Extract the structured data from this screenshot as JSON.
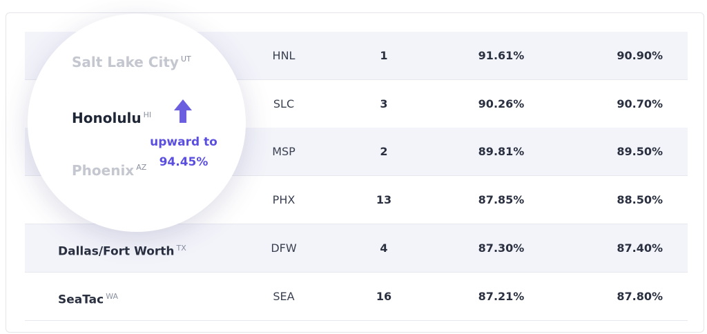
{
  "table": {
    "rows": [
      {
        "code": "HNL",
        "rank": "1",
        "pct1": "91.61%",
        "pct2": "90.90%"
      },
      {
        "code": "SLC",
        "rank": "3",
        "pct1": "90.26%",
        "pct2": "90.70%"
      },
      {
        "code": "MSP",
        "rank": "2",
        "pct1": "89.81%",
        "pct2": "89.50%"
      },
      {
        "code": "PHX",
        "rank": "13",
        "pct1": "87.85%",
        "pct2": "88.50%"
      },
      {
        "city": "Dallas/Fort Worth",
        "state": "TX",
        "code": "DFW",
        "rank": "4",
        "pct1": "87.30%",
        "pct2": "87.40%"
      },
      {
        "city": "SeaTac",
        "state": "WA",
        "code": "SEA",
        "rank": "16",
        "pct1": "87.21%",
        "pct2": "87.80%"
      }
    ]
  },
  "magnifier": {
    "items": [
      {
        "city": "Salt Lake City",
        "state": "UT"
      },
      {
        "city": "Honolulu",
        "state": "HI"
      },
      {
        "city": "Phoenix",
        "state": "AZ"
      }
    ],
    "note": "upward to",
    "value": "94.45%"
  }
}
